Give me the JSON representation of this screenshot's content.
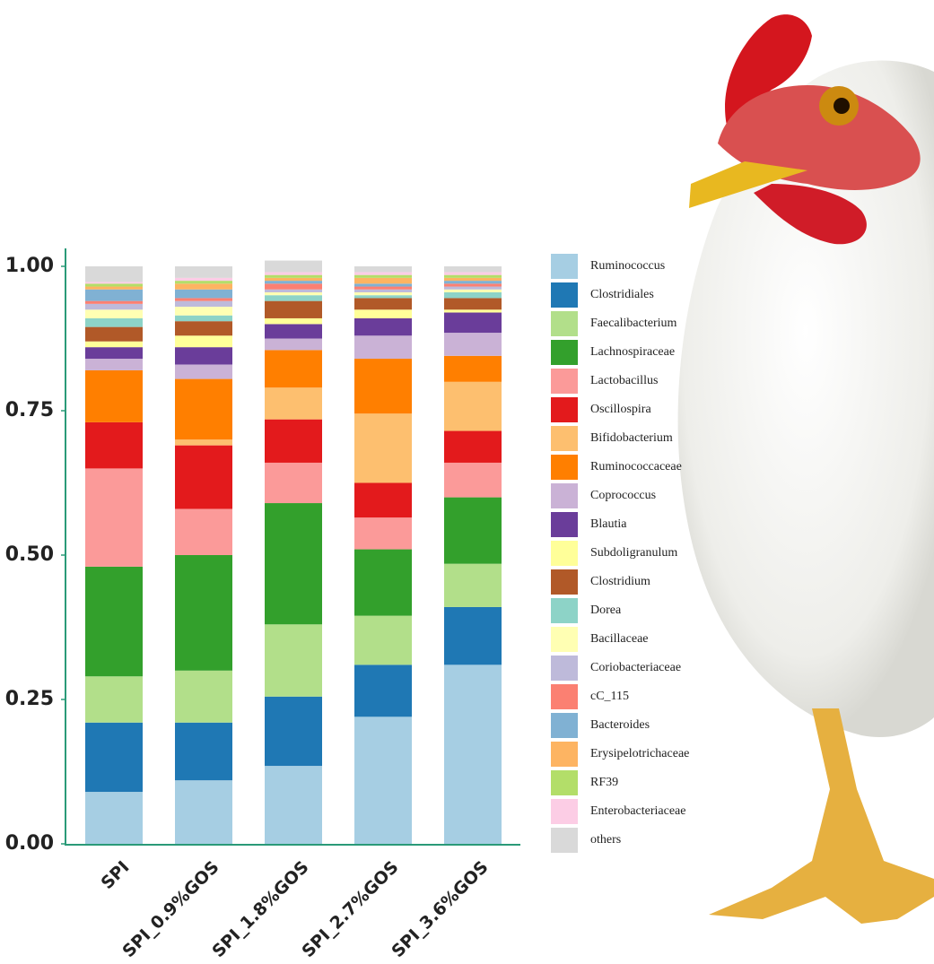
{
  "chart_data": {
    "type": "stacked_bar",
    "categories": [
      "SPI",
      "SPI_0.9%GOS",
      "SPI_1.8%GOS",
      "SPI_2.7%GOS",
      "SPI_3.6%GOS"
    ],
    "ylim": [
      0,
      1
    ],
    "yticks": [
      {
        "value": 0,
        "label": "0.00"
      },
      0.25,
      {
        "value": 0.5,
        "label": "0.50"
      },
      0.75,
      {
        "value": 1,
        "label": "1.00"
      }
    ],
    "legend": "right",
    "series": [
      {
        "name": "Ruminococcus",
        "color": "#a6cee3",
        "values": [
          0.09,
          0.11,
          0.135,
          0.22,
          0.31
        ]
      },
      {
        "name": "Clostridiales",
        "color": "#1f78b4",
        "values": [
          0.12,
          0.1,
          0.12,
          0.09,
          0.1
        ]
      },
      {
        "name": "Faecalibacterium",
        "color": "#b2df8a",
        "values": [
          0.08,
          0.09,
          0.125,
          0.085,
          0.075
        ]
      },
      {
        "name": "Lachnospiraceae",
        "color": "#33a02c",
        "values": [
          0.19,
          0.2,
          0.21,
          0.115,
          0.115
        ]
      },
      {
        "name": "Lactobacillus",
        "color": "#fb9a99",
        "values": [
          0.17,
          0.08,
          0.07,
          0.055,
          0.06
        ]
      },
      {
        "name": "Oscillospira",
        "color": "#e31a1c",
        "values": [
          0.08,
          0.11,
          0.075,
          0.06,
          0.055
        ]
      },
      {
        "name": "Bifidobacterium",
        "color": "#fdbf6f",
        "values": [
          0,
          0.01,
          0.055,
          0.12,
          0.085
        ]
      },
      {
        "name": "Ruminococcaceae",
        "color": "#ff7f00",
        "values": [
          0.09,
          0.105,
          0.065,
          0.095,
          0.045
        ]
      },
      {
        "name": "Coprococcus",
        "color": "#cab2d6",
        "values": [
          0.02,
          0.025,
          0.02,
          0.04,
          0.04
        ]
      },
      {
        "name": "Blautia",
        "color": "#6a3d9a",
        "values": [
          0.02,
          0.03,
          0.025,
          0.03,
          0.035
        ]
      },
      {
        "name": "Subdoligranulum",
        "color": "#ffff99",
        "values": [
          0.01,
          0.02,
          0.01,
          0.015,
          0.005
        ]
      },
      {
        "name": "Clostridium",
        "color": "#b15928",
        "values": [
          0.025,
          0.025,
          0.03,
          0.02,
          0.02
        ]
      },
      {
        "name": "Dorea",
        "color": "#8dd3c7",
        "values": [
          0.015,
          0.01,
          0.01,
          0.005,
          0.01
        ]
      },
      {
        "name": "Bacillaceae",
        "color": "#ffffb3",
        "values": [
          0.015,
          0.015,
          0.005,
          0.005,
          0.005
        ]
      },
      {
        "name": "Coriobacteriaceae",
        "color": "#bebada",
        "values": [
          0.01,
          0.01,
          0.005,
          0.005,
          0.005
        ]
      },
      {
        "name": "cC_115",
        "color": "#fb8072",
        "values": [
          0.005,
          0.005,
          0.01,
          0.005,
          0.005
        ]
      },
      {
        "name": "Bacteroides",
        "color": "#80b1d3",
        "values": [
          0.02,
          0.015,
          0.005,
          0.005,
          0.005
        ]
      },
      {
        "name": "Erysipelotrichaceae",
        "color": "#fdb462",
        "values": [
          0.005,
          0.01,
          0.005,
          0.01,
          0.005
        ]
      },
      {
        "name": "RF39",
        "color": "#b3de69",
        "values": [
          0.005,
          0.005,
          0.005,
          0.005,
          0.005
        ]
      },
      {
        "name": "Enterobacteriaceae",
        "color": "#fccde5",
        "values": [
          0.003,
          0.005,
          0.005,
          0.005,
          0.005
        ]
      },
      {
        "name": "others",
        "color": "#d9d9d9",
        "values": [
          0.027,
          0.02,
          0.02,
          0.01,
          0.01
        ]
      }
    ]
  }
}
